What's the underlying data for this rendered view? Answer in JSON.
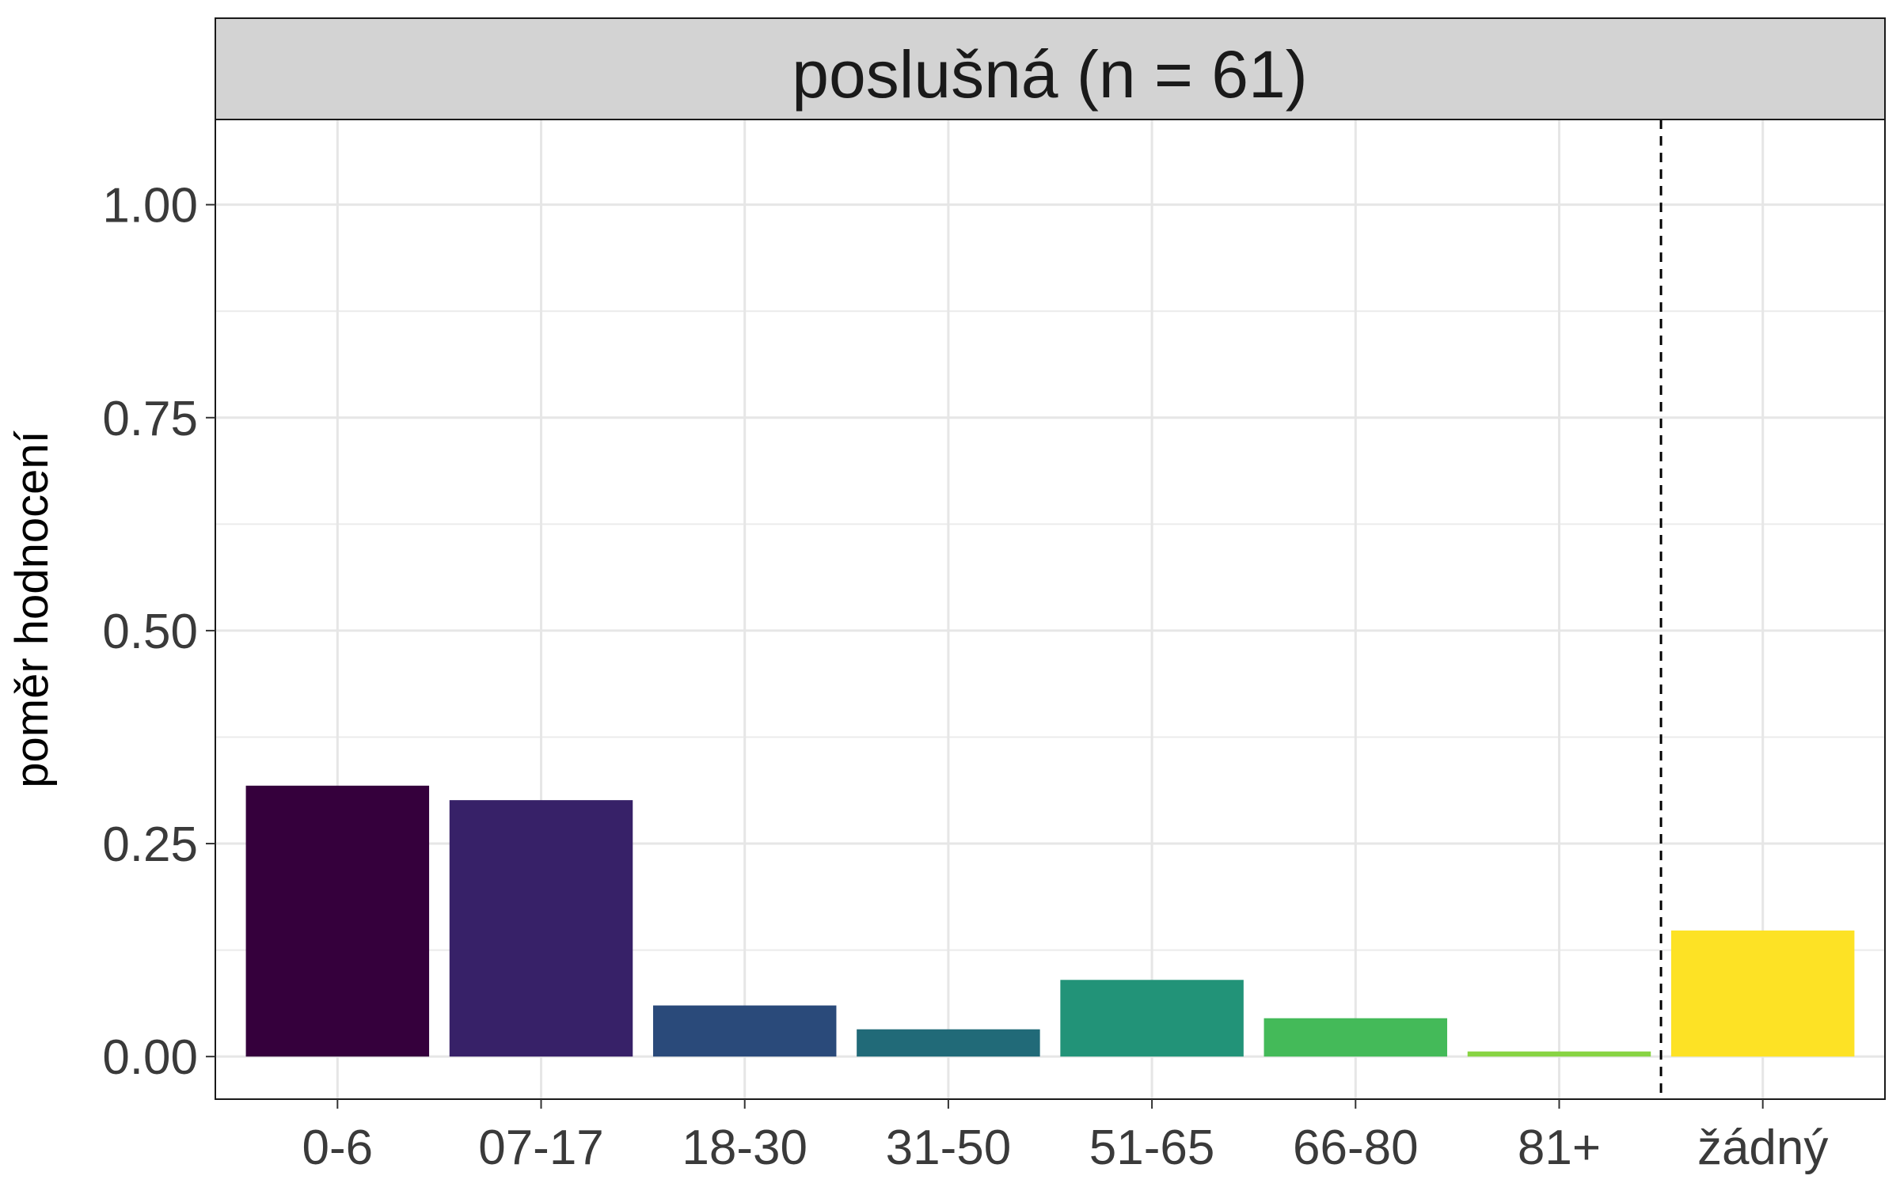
{
  "chart_data": {
    "type": "bar",
    "title": "",
    "facet_label": "poslušná (n = 61)",
    "xlabel": "",
    "ylabel": "poměr hodnocení",
    "categories": [
      "0-6",
      "07-17",
      "18-30",
      "31-50",
      "51-65",
      "66-80",
      "81+",
      "žádný"
    ],
    "values": [
      0.318,
      0.301,
      0.06,
      0.032,
      0.09,
      0.045,
      0.006,
      0.148
    ],
    "colors": [
      "#35003C",
      "#372168",
      "#2A4A7A",
      "#216A78",
      "#229378",
      "#44BA59",
      "#88D443",
      "#FDE225"
    ],
    "ylim": [
      -0.05,
      1.1
    ],
    "yticks": [
      0,
      0.25,
      0.5,
      0.75,
      1.0
    ],
    "ytick_labels": [
      "0.00",
      "0.25",
      "0.50",
      "0.75",
      "1.00"
    ],
    "separator_after_index": 6,
    "grid": true,
    "legend": "none"
  }
}
